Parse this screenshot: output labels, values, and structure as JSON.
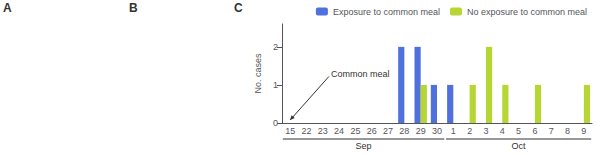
{
  "chart_data": {
    "type": "bar",
    "title": "C",
    "categories": [
      "15",
      "22",
      "23",
      "24",
      "25",
      "26",
      "27",
      "28",
      "29",
      "30",
      "1",
      "2",
      "3",
      "4",
      "5",
      "6",
      "7",
      "8",
      "9"
    ],
    "series": [
      {
        "name": "Exposure to common meal",
        "values": [
          0,
          0,
          0,
          0,
          0,
          0,
          0,
          2,
          2,
          1,
          1,
          0,
          0,
          0,
          0,
          0,
          0,
          0,
          0
        ]
      },
      {
        "name": "No exposure to common meal",
        "values": [
          0,
          0,
          0,
          0,
          0,
          0,
          0,
          0,
          1,
          0,
          0,
          1,
          2,
          1,
          0,
          1,
          0,
          0,
          1
        ]
      }
    ],
    "ylabel": "No. cases",
    "ylim": [
      0,
      2.6
    ],
    "yticks": [
      0,
      1,
      2
    ],
    "grid": false,
    "legend": "upper right",
    "annotations": [
      {
        "text": "A"
      },
      {
        "text": "B"
      },
      {
        "text": "Common meal",
        "x": "15"
      },
      {
        "text": "Sep",
        "from": "15",
        "to": "30"
      },
      {
        "text": "Oct",
        "from": "1",
        "to": "9"
      }
    ]
  }
}
